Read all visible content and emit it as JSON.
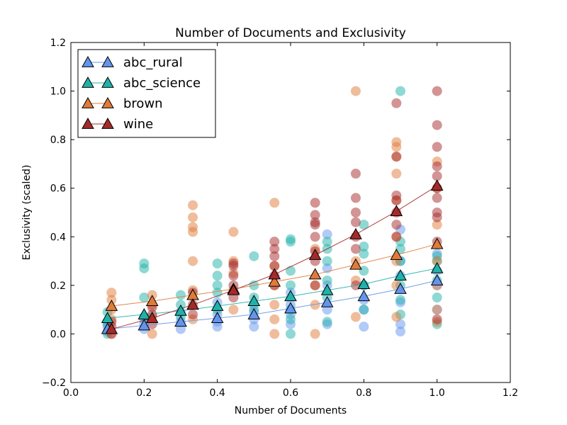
{
  "chart_data": {
    "type": "scatter",
    "title": "Number of Documents and Exclusivity",
    "xlabel": "Number of Documents",
    "ylabel": "Exclusivity (scaled)",
    "xlim": [
      0.0,
      1.2
    ],
    "ylim": [
      -0.2,
      1.2
    ],
    "x_ticks": [
      "0.0",
      "0.2",
      "0.4",
      "0.6",
      "0.8",
      "1.0",
      "1.2"
    ],
    "y_ticks": [
      "−0.2",
      "0.0",
      "0.2",
      "0.4",
      "0.6",
      "0.8",
      "1.0",
      "1.2"
    ],
    "grid": false,
    "legend_position": "upper-left",
    "series": [
      {
        "name": "abc_rural",
        "color": "#6495ed",
        "mean_line": [
          {
            "x": 0.1,
            "y": 0.02
          },
          {
            "x": 0.2,
            "y": 0.035
          },
          {
            "x": 0.3,
            "y": 0.05
          },
          {
            "x": 0.4,
            "y": 0.065
          },
          {
            "x": 0.5,
            "y": 0.08
          },
          {
            "x": 0.6,
            "y": 0.105
          },
          {
            "x": 0.7,
            "y": 0.13
          },
          {
            "x": 0.8,
            "y": 0.155
          },
          {
            "x": 0.9,
            "y": 0.185
          },
          {
            "x": 1.0,
            "y": 0.22
          }
        ],
        "points": [
          [
            0.1,
            0.01
          ],
          [
            0.1,
            0.03
          ],
          [
            0.1,
            0.05
          ],
          [
            0.2,
            0.02
          ],
          [
            0.2,
            0.04
          ],
          [
            0.2,
            0.06
          ],
          [
            0.3,
            0.02
          ],
          [
            0.3,
            0.05
          ],
          [
            0.3,
            0.09
          ],
          [
            0.4,
            0.03
          ],
          [
            0.4,
            0.05
          ],
          [
            0.4,
            0.08
          ],
          [
            0.4,
            0.13
          ],
          [
            0.5,
            0.03
          ],
          [
            0.5,
            0.06
          ],
          [
            0.5,
            0.09
          ],
          [
            0.5,
            0.12
          ],
          [
            0.6,
            0.04
          ],
          [
            0.6,
            0.08
          ],
          [
            0.6,
            0.12
          ],
          [
            0.6,
            0.17
          ],
          [
            0.7,
            0.04
          ],
          [
            0.7,
            0.1
          ],
          [
            0.7,
            0.2
          ],
          [
            0.7,
            0.27
          ],
          [
            0.7,
            0.41
          ],
          [
            0.8,
            0.03
          ],
          [
            0.8,
            0.1
          ],
          [
            0.8,
            0.14
          ],
          [
            0.8,
            0.2
          ],
          [
            0.9,
            0.01
          ],
          [
            0.9,
            0.04
          ],
          [
            0.9,
            0.13
          ],
          [
            0.9,
            0.24
          ],
          [
            0.9,
            0.3
          ],
          [
            0.9,
            0.43
          ],
          [
            1.0,
            0.1
          ],
          [
            1.0,
            0.2
          ],
          [
            1.0,
            0.26
          ],
          [
            1.0,
            0.33
          ]
        ]
      },
      {
        "name": "abc_science",
        "color": "#20b2aa",
        "mean_line": [
          {
            "x": 0.1,
            "y": 0.065
          },
          {
            "x": 0.2,
            "y": 0.08
          },
          {
            "x": 0.3,
            "y": 0.095
          },
          {
            "x": 0.4,
            "y": 0.115
          },
          {
            "x": 0.5,
            "y": 0.135
          },
          {
            "x": 0.6,
            "y": 0.155
          },
          {
            "x": 0.7,
            "y": 0.18
          },
          {
            "x": 0.8,
            "y": 0.205
          },
          {
            "x": 0.9,
            "y": 0.24
          },
          {
            "x": 1.0,
            "y": 0.27
          }
        ],
        "points": [
          [
            0.1,
            0.0
          ],
          [
            0.1,
            0.04
          ],
          [
            0.1,
            0.09
          ],
          [
            0.2,
            0.07
          ],
          [
            0.2,
            0.15
          ],
          [
            0.2,
            0.27
          ],
          [
            0.2,
            0.29
          ],
          [
            0.3,
            0.07
          ],
          [
            0.3,
            0.12
          ],
          [
            0.3,
            0.16
          ],
          [
            0.4,
            0.1
          ],
          [
            0.4,
            0.17
          ],
          [
            0.4,
            0.2
          ],
          [
            0.4,
            0.24
          ],
          [
            0.4,
            0.29
          ],
          [
            0.5,
            0.1
          ],
          [
            0.5,
            0.15
          ],
          [
            0.5,
            0.2
          ],
          [
            0.5,
            0.32
          ],
          [
            0.6,
            0.0
          ],
          [
            0.6,
            0.06
          ],
          [
            0.6,
            0.1
          ],
          [
            0.6,
            0.2
          ],
          [
            0.6,
            0.26
          ],
          [
            0.6,
            0.38
          ],
          [
            0.6,
            0.39
          ],
          [
            0.7,
            0.05
          ],
          [
            0.7,
            0.15
          ],
          [
            0.7,
            0.22
          ],
          [
            0.7,
            0.3
          ],
          [
            0.7,
            0.35
          ],
          [
            0.7,
            0.38
          ],
          [
            0.8,
            0.1
          ],
          [
            0.8,
            0.2
          ],
          [
            0.8,
            0.26
          ],
          [
            0.8,
            0.33
          ],
          [
            0.8,
            0.36
          ],
          [
            0.8,
            0.45
          ],
          [
            0.9,
            0.08
          ],
          [
            0.9,
            0.14
          ],
          [
            0.9,
            0.2
          ],
          [
            0.9,
            0.3
          ],
          [
            0.9,
            0.35
          ],
          [
            0.9,
            0.38
          ],
          [
            0.9,
            1.0
          ],
          [
            1.0,
            0.04
          ],
          [
            1.0,
            0.15
          ],
          [
            1.0,
            0.22
          ],
          [
            1.0,
            0.3
          ],
          [
            1.0,
            0.32
          ]
        ]
      },
      {
        "name": "brown",
        "color": "#e07b39",
        "mean_line": [
          {
            "x": 0.111,
            "y": 0.115
          },
          {
            "x": 0.222,
            "y": 0.135
          },
          {
            "x": 0.333,
            "y": 0.16
          },
          {
            "x": 0.444,
            "y": 0.185
          },
          {
            "x": 0.556,
            "y": 0.215
          },
          {
            "x": 0.667,
            "y": 0.245
          },
          {
            "x": 0.778,
            "y": 0.285
          },
          {
            "x": 0.889,
            "y": 0.325
          },
          {
            "x": 1.0,
            "y": 0.37
          }
        ],
        "points": [
          [
            0.111,
            0.0
          ],
          [
            0.111,
            0.06
          ],
          [
            0.111,
            0.1
          ],
          [
            0.111,
            0.14
          ],
          [
            0.111,
            0.17
          ],
          [
            0.222,
            0.0
          ],
          [
            0.222,
            0.07
          ],
          [
            0.222,
            0.12
          ],
          [
            0.222,
            0.16
          ],
          [
            0.333,
            0.06
          ],
          [
            0.333,
            0.18
          ],
          [
            0.333,
            0.3
          ],
          [
            0.333,
            0.42
          ],
          [
            0.333,
            0.44
          ],
          [
            0.333,
            0.48
          ],
          [
            0.333,
            0.53
          ],
          [
            0.444,
            0.1
          ],
          [
            0.444,
            0.18
          ],
          [
            0.444,
            0.25
          ],
          [
            0.444,
            0.3
          ],
          [
            0.444,
            0.42
          ],
          [
            0.556,
            0.0
          ],
          [
            0.556,
            0.06
          ],
          [
            0.556,
            0.12
          ],
          [
            0.556,
            0.2
          ],
          [
            0.556,
            0.28
          ],
          [
            0.556,
            0.54
          ],
          [
            0.667,
            0.0
          ],
          [
            0.667,
            0.12
          ],
          [
            0.667,
            0.2
          ],
          [
            0.667,
            0.35
          ],
          [
            0.778,
            0.07
          ],
          [
            0.778,
            0.22
          ],
          [
            0.778,
            0.3
          ],
          [
            0.778,
            1.0
          ],
          [
            0.889,
            0.07
          ],
          [
            0.889,
            0.2
          ],
          [
            0.889,
            0.3
          ],
          [
            0.889,
            0.4
          ],
          [
            0.889,
            0.55
          ],
          [
            0.889,
            0.66
          ],
          [
            0.889,
            0.73
          ],
          [
            0.889,
            0.77
          ],
          [
            0.889,
            0.79
          ],
          [
            1.0,
            0.05
          ],
          [
            1.0,
            0.1
          ],
          [
            1.0,
            0.2
          ],
          [
            1.0,
            0.3
          ],
          [
            1.0,
            0.45
          ],
          [
            1.0,
            0.6
          ],
          [
            1.0,
            0.71
          ]
        ]
      },
      {
        "name": "wine",
        "color": "#a52a2a",
        "mean_line": [
          {
            "x": 0.111,
            "y": 0.02
          },
          {
            "x": 0.222,
            "y": 0.065
          },
          {
            "x": 0.333,
            "y": 0.12
          },
          {
            "x": 0.444,
            "y": 0.18
          },
          {
            "x": 0.556,
            "y": 0.245
          },
          {
            "x": 0.667,
            "y": 0.325
          },
          {
            "x": 0.778,
            "y": 0.41
          },
          {
            "x": 0.889,
            "y": 0.505
          },
          {
            "x": 1.0,
            "y": 0.61
          }
        ],
        "points": [
          [
            0.111,
            0.0
          ],
          [
            0.111,
            0.03
          ],
          [
            0.111,
            0.05
          ],
          [
            0.222,
            0.04
          ],
          [
            0.222,
            0.08
          ],
          [
            0.222,
            0.11
          ],
          [
            0.333,
            0.08
          ],
          [
            0.333,
            0.12
          ],
          [
            0.333,
            0.17
          ],
          [
            0.444,
            0.15
          ],
          [
            0.444,
            0.2
          ],
          [
            0.444,
            0.24
          ],
          [
            0.444,
            0.28
          ],
          [
            0.444,
            0.29
          ],
          [
            0.556,
            0.2
          ],
          [
            0.556,
            0.24
          ],
          [
            0.556,
            0.28
          ],
          [
            0.556,
            0.32
          ],
          [
            0.556,
            0.35
          ],
          [
            0.556,
            0.38
          ],
          [
            0.667,
            0.2
          ],
          [
            0.667,
            0.3
          ],
          [
            0.667,
            0.34
          ],
          [
            0.667,
            0.4
          ],
          [
            0.667,
            0.45
          ],
          [
            0.667,
            0.46
          ],
          [
            0.667,
            0.49
          ],
          [
            0.667,
            0.54
          ],
          [
            0.778,
            0.2
          ],
          [
            0.778,
            0.35
          ],
          [
            0.778,
            0.4
          ],
          [
            0.778,
            0.46
          ],
          [
            0.778,
            0.5
          ],
          [
            0.778,
            0.56
          ],
          [
            0.778,
            0.66
          ],
          [
            0.889,
            0.4
          ],
          [
            0.889,
            0.45
          ],
          [
            0.889,
            0.5
          ],
          [
            0.889,
            0.55
          ],
          [
            0.889,
            0.57
          ],
          [
            0.889,
            0.73
          ],
          [
            0.889,
            0.95
          ],
          [
            1.0,
            0.06
          ],
          [
            1.0,
            0.38
          ],
          [
            1.0,
            0.48
          ],
          [
            1.0,
            0.5
          ],
          [
            1.0,
            0.56
          ],
          [
            1.0,
            0.6
          ],
          [
            1.0,
            0.65
          ],
          [
            1.0,
            0.69
          ],
          [
            1.0,
            0.77
          ],
          [
            1.0,
            0.86
          ],
          [
            1.0,
            1.0
          ]
        ]
      }
    ]
  }
}
